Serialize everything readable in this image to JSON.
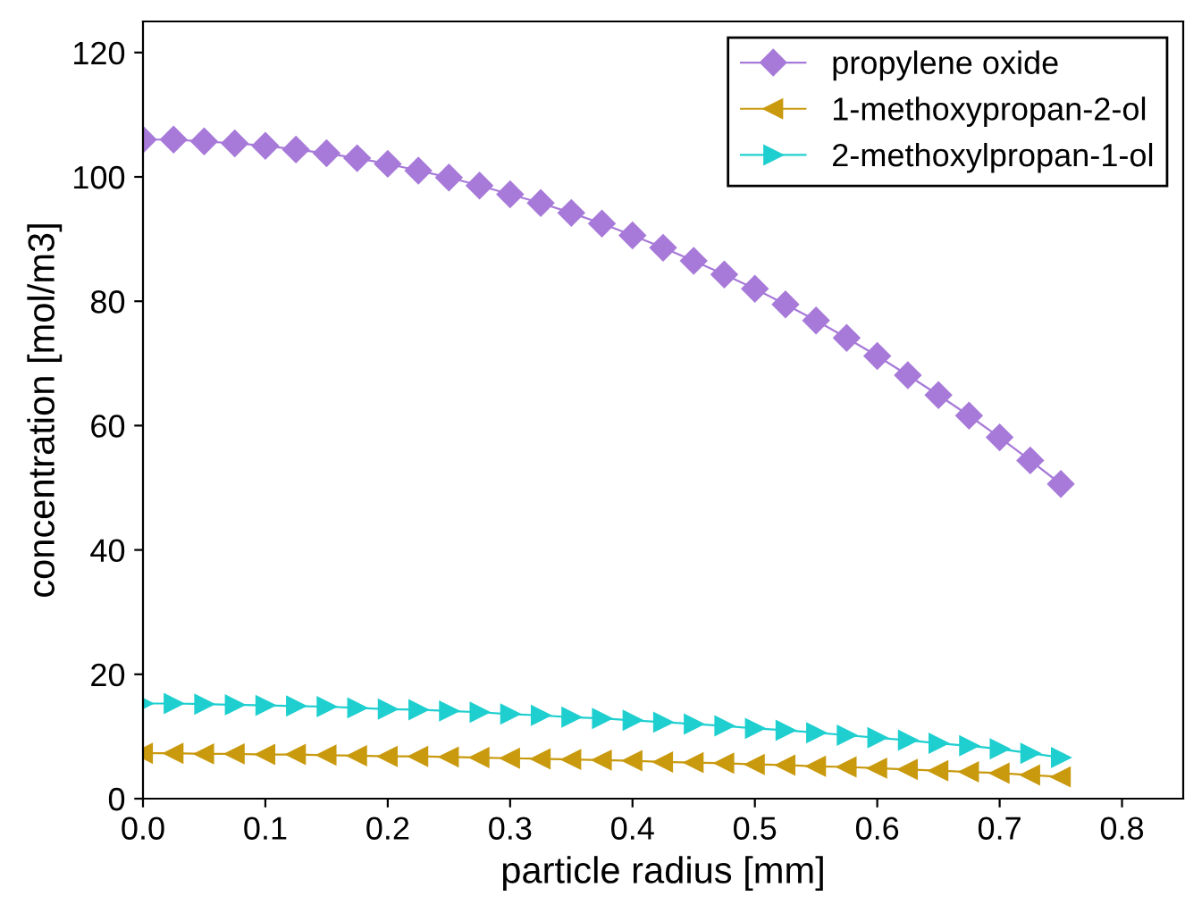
{
  "chart_data": {
    "type": "line",
    "xlabel": "particle radius [mm]",
    "ylabel": "concentration [mol/m3]",
    "x": [
      0,
      0.025,
      0.05,
      0.075,
      0.1,
      0.125,
      0.15,
      0.175,
      0.2,
      0.225,
      0.25,
      0.275,
      0.3,
      0.325,
      0.35,
      0.375,
      0.4,
      0.425,
      0.45,
      0.475,
      0.5,
      0.525,
      0.55,
      0.575,
      0.6,
      0.625,
      0.65,
      0.675,
      0.7,
      0.725,
      0.75
    ],
    "series": [
      {
        "name": "propylene oxide",
        "color": "#a77ad9",
        "marker": "diamond",
        "values": [
          106,
          106,
          105.7,
          105.4,
          105,
          104.4,
          103.8,
          103,
          102.1,
          101,
          99.9,
          98.6,
          97.2,
          95.8,
          94.2,
          92.5,
          90.6,
          88.6,
          86.5,
          84.3,
          82,
          79.5,
          76.9,
          74.1,
          71.2,
          68.1,
          64.9,
          61.6,
          58.1,
          54.4,
          50.6
        ]
      },
      {
        "name": "1-methoxypropan-2-ol",
        "color": "#c99a0e",
        "marker": "triangle-left",
        "values": [
          7.3,
          7.3,
          7.2,
          7.2,
          7.1,
          7.1,
          7,
          6.9,
          6.8,
          6.8,
          6.7,
          6.6,
          6.5,
          6.4,
          6.3,
          6.2,
          6.1,
          5.9,
          5.8,
          5.7,
          5.5,
          5.4,
          5.2,
          5.1,
          4.9,
          4.7,
          4.5,
          4.3,
          4.1,
          3.8,
          3.5
        ]
      },
      {
        "name": "2-methoxylpropan-1-ol",
        "color": "#1fcfcf",
        "marker": "triangle-right",
        "values": [
          15.3,
          15.3,
          15.2,
          15.1,
          15,
          14.9,
          14.8,
          14.6,
          14.4,
          14.3,
          14.1,
          13.9,
          13.6,
          13.4,
          13.1,
          12.9,
          12.6,
          12.3,
          12,
          11.7,
          11.3,
          11,
          10.6,
          10.2,
          9.8,
          9.4,
          8.9,
          8.5,
          8,
          7.3,
          6.6
        ]
      }
    ],
    "xlim": [
      0,
      0.85
    ],
    "xticks": [
      {
        "value": 0,
        "label": "0.0"
      },
      0.1,
      0.2,
      0.3,
      0.4,
      0.5,
      0.6,
      0.7,
      0.8
    ],
    "ylim": [
      0,
      125
    ],
    "yticks": [
      0,
      20,
      40,
      60,
      80,
      100,
      120
    ],
    "grid": false,
    "legend": "top right",
    "line_style": "solid"
  }
}
